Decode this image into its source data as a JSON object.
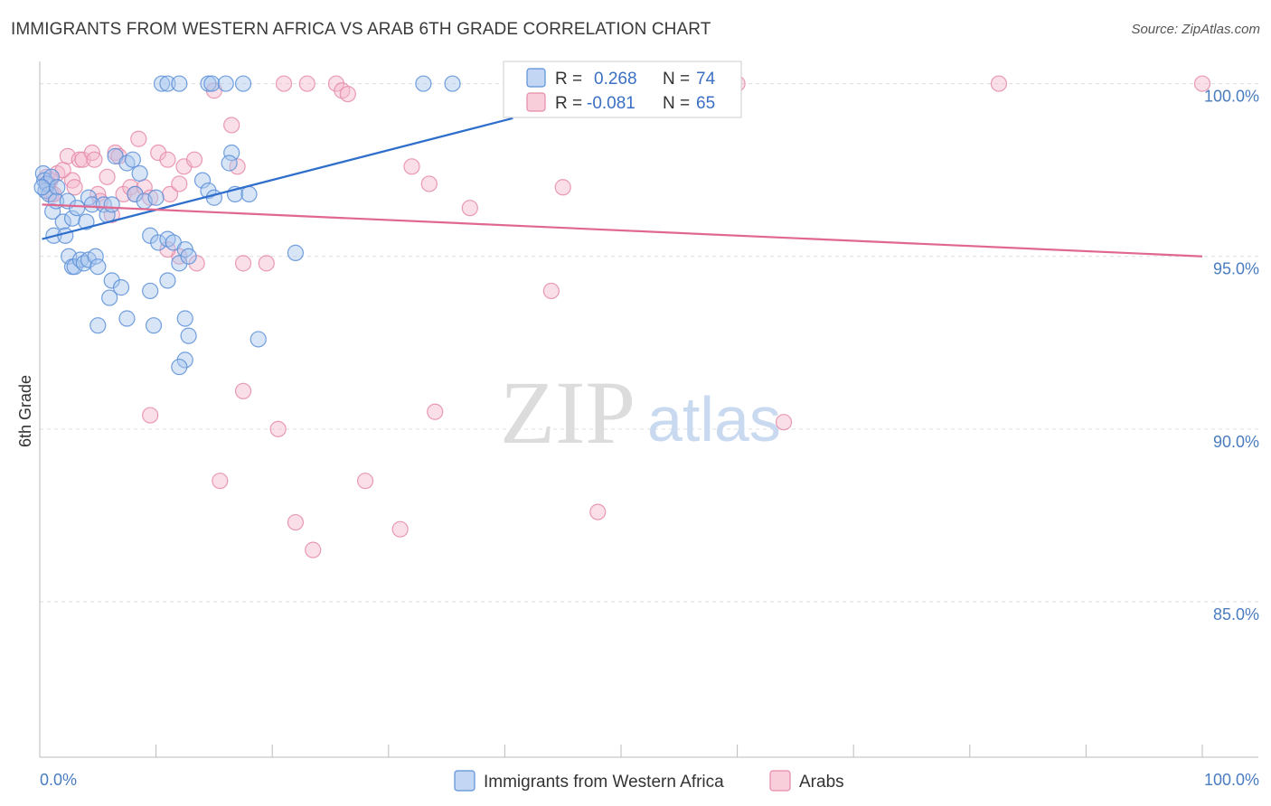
{
  "header": {
    "title": "IMMIGRANTS FROM WESTERN AFRICA VS ARAB 6TH GRADE CORRELATION CHART",
    "source": "Source: ZipAtlas.com"
  },
  "watermark": {
    "zip": "ZIP",
    "atlas": "atlas"
  },
  "colors": {
    "blue_fill": "#a9c5ee",
    "blue_stroke": "#5a8fd8",
    "blue_line": "#2f6fcc",
    "pink_fill": "#f5b9cc",
    "pink_stroke": "#e58aa8",
    "pink_line": "#e06890",
    "grid": "#dddddd",
    "axis_text": "#4a7cc0"
  },
  "stats_box": {
    "rows": [
      {
        "r_label": "R =",
        "r_value": "0.268",
        "n_label": "N =",
        "n_value": "74"
      },
      {
        "r_label": "R =",
        "r_value": "-0.081",
        "n_label": "N =",
        "n_value": "65"
      }
    ]
  },
  "legend": {
    "items": [
      {
        "label": "Immigrants from Western Africa"
      },
      {
        "label": "Arabs"
      }
    ]
  },
  "chart_data": {
    "type": "scatter",
    "title": "IMMIGRANTS FROM WESTERN AFRICA VS ARAB 6TH GRADE CORRELATION CHART",
    "xlabel": "",
    "ylabel": "6th Grade",
    "xlim": [
      0,
      100
    ],
    "ylim": [
      80.5,
      100.8
    ],
    "x_tick_labels": [
      "0.0%",
      "100.0%"
    ],
    "y_ticks": [
      85,
      90,
      95,
      100
    ],
    "y_tick_labels": [
      "85.0%",
      "90.0%",
      "95.0%",
      "100.0%"
    ],
    "grid": true,
    "series": [
      {
        "name": "Immigrants from Western Africa",
        "R": 0.268,
        "N": 74,
        "trend": {
          "x": [
            0.2,
            40.7
          ],
          "y": [
            95.5,
            99.0
          ]
        },
        "points": [
          [
            0.3,
            97.4
          ],
          [
            0.4,
            97.2
          ],
          [
            0.5,
            96.9
          ],
          [
            0.6,
            97.1
          ],
          [
            0.8,
            96.8
          ],
          [
            1.0,
            97.3
          ],
          [
            0.2,
            97.0
          ],
          [
            1.5,
            97.0
          ],
          [
            1.1,
            96.3
          ],
          [
            1.4,
            96.6
          ],
          [
            2.0,
            96.0
          ],
          [
            2.4,
            96.6
          ],
          [
            1.2,
            95.6
          ],
          [
            2.2,
            95.6
          ],
          [
            2.8,
            96.1
          ],
          [
            3.2,
            96.4
          ],
          [
            4.0,
            96.0
          ],
          [
            4.2,
            96.7
          ],
          [
            4.5,
            96.5
          ],
          [
            5.5,
            96.5
          ],
          [
            5.8,
            96.2
          ],
          [
            6.2,
            96.5
          ],
          [
            6.5,
            97.9
          ],
          [
            7.5,
            97.7
          ],
          [
            8.0,
            97.8
          ],
          [
            8.2,
            96.8
          ],
          [
            8.6,
            97.4
          ],
          [
            9.0,
            96.6
          ],
          [
            10.0,
            96.7
          ],
          [
            9.5,
            95.6
          ],
          [
            10.2,
            95.4
          ],
          [
            11.0,
            95.5
          ],
          [
            11.5,
            95.4
          ],
          [
            12.5,
            95.2
          ],
          [
            12.0,
            94.8
          ],
          [
            12.8,
            95.0
          ],
          [
            14.0,
            97.2
          ],
          [
            14.5,
            96.9
          ],
          [
            15.0,
            96.7
          ],
          [
            16.5,
            98.0
          ],
          [
            16.3,
            97.7
          ],
          [
            16.8,
            96.8
          ],
          [
            18.0,
            96.8
          ],
          [
            2.5,
            95.0
          ],
          [
            2.8,
            94.7
          ],
          [
            3.0,
            94.7
          ],
          [
            3.5,
            94.9
          ],
          [
            3.8,
            94.8
          ],
          [
            4.2,
            94.9
          ],
          [
            4.8,
            95.0
          ],
          [
            5.0,
            94.7
          ],
          [
            6.0,
            93.8
          ],
          [
            6.2,
            94.3
          ],
          [
            7.0,
            94.1
          ],
          [
            7.5,
            93.2
          ],
          [
            9.5,
            94.0
          ],
          [
            9.8,
            93.0
          ],
          [
            11.0,
            94.3
          ],
          [
            12.5,
            93.2
          ],
          [
            5.0,
            93.0
          ],
          [
            12.8,
            92.7
          ],
          [
            12.5,
            92.0
          ],
          [
            12.0,
            91.8
          ],
          [
            18.8,
            92.6
          ],
          [
            22.0,
            95.1
          ],
          [
            10.5,
            100.0
          ],
          [
            11.0,
            100.0
          ],
          [
            12.0,
            100.0
          ],
          [
            14.5,
            100.0
          ],
          [
            14.8,
            100.0
          ],
          [
            16.0,
            100.0
          ],
          [
            17.5,
            100.0
          ],
          [
            33.0,
            100.0
          ],
          [
            35.5,
            100.0
          ]
        ]
      },
      {
        "name": "Arabs",
        "R": -0.081,
        "N": 65,
        "trend": {
          "x": [
            0.2,
            100
          ],
          "y": [
            96.5,
            95.0
          ]
        },
        "points": [
          [
            0.6,
            97.3
          ],
          [
            0.9,
            97.2
          ],
          [
            1.0,
            96.8
          ],
          [
            1.5,
            97.4
          ],
          [
            2.0,
            97.5
          ],
          [
            2.4,
            97.9
          ],
          [
            2.8,
            97.2
          ],
          [
            3.4,
            97.8
          ],
          [
            3.7,
            97.8
          ],
          [
            4.5,
            98.0
          ],
          [
            4.7,
            97.8
          ],
          [
            5.0,
            96.8
          ],
          [
            5.2,
            96.6
          ],
          [
            5.8,
            97.3
          ],
          [
            6.2,
            96.2
          ],
          [
            6.5,
            98.0
          ],
          [
            6.8,
            97.9
          ],
          [
            7.2,
            96.8
          ],
          [
            7.8,
            97.0
          ],
          [
            8.2,
            96.8
          ],
          [
            8.5,
            98.4
          ],
          [
            9.0,
            97.0
          ],
          [
            9.5,
            96.7
          ],
          [
            10.2,
            98.0
          ],
          [
            11.0,
            97.8
          ],
          [
            11.2,
            96.8
          ],
          [
            12.0,
            97.1
          ],
          [
            12.4,
            97.6
          ],
          [
            13.3,
            97.8
          ],
          [
            12.0,
            95.0
          ],
          [
            13.5,
            94.8
          ],
          [
            11.0,
            95.2
          ],
          [
            15.0,
            99.8
          ],
          [
            16.5,
            98.8
          ],
          [
            17.0,
            97.6
          ],
          [
            17.5,
            94.8
          ],
          [
            19.5,
            94.8
          ],
          [
            21.0,
            100.0
          ],
          [
            23.0,
            100.0
          ],
          [
            25.5,
            100.0
          ],
          [
            26.0,
            99.8
          ],
          [
            26.5,
            99.7
          ],
          [
            32.0,
            97.6
          ],
          [
            33.5,
            97.1
          ],
          [
            37.0,
            96.4
          ],
          [
            44.0,
            94.0
          ],
          [
            45.0,
            97.0
          ],
          [
            48.0,
            100.0
          ],
          [
            60.0,
            100.0
          ],
          [
            82.5,
            100.0
          ],
          [
            100.0,
            100.0
          ],
          [
            9.5,
            90.4
          ],
          [
            17.5,
            91.1
          ],
          [
            20.5,
            90.0
          ],
          [
            34.0,
            90.5
          ],
          [
            64.0,
            90.2
          ],
          [
            15.5,
            88.5
          ],
          [
            28.0,
            88.5
          ],
          [
            22.0,
            87.3
          ],
          [
            31.0,
            87.1
          ],
          [
            48.0,
            87.6
          ],
          [
            23.5,
            86.5
          ],
          [
            1.2,
            96.8
          ],
          [
            0.7,
            97.1
          ],
          [
            3.0,
            97.0
          ]
        ]
      }
    ]
  }
}
